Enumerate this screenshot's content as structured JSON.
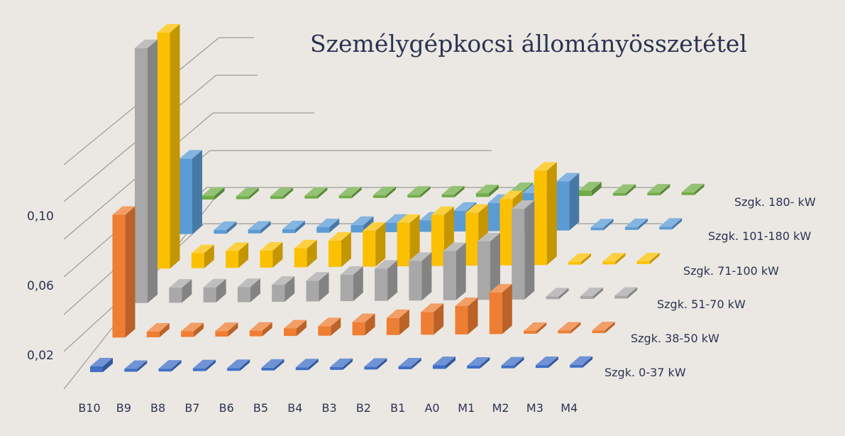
{
  "chart_data": {
    "type": "bar",
    "title": "Személygépkocsi állományösszetétel",
    "categories": [
      "B10",
      "B9",
      "B8",
      "B7",
      "B6",
      "B5",
      "B4",
      "B3",
      "B2",
      "B1",
      "A0",
      "M1",
      "M2",
      "M3",
      "M4"
    ],
    "yticks": [
      "0,02",
      "0,06",
      "0,10"
    ],
    "ylim": [
      0,
      0.14
    ],
    "grid": true,
    "legend": "none",
    "series": [
      {
        "name": "Szgk. 0-37 kW",
        "color": "#3f6fc7",
        "values": [
          0.003,
          0,
          0,
          0,
          0,
          0,
          0,
          0,
          0,
          0.001,
          0.002,
          0,
          0,
          0,
          0
        ]
      },
      {
        "name": "Szgk. 38-50 kW",
        "color": "#ee7e33",
        "values": [
          0.065,
          0.003,
          0.003,
          0.003,
          0.003,
          0.004,
          0.005,
          0.007,
          0.009,
          0.012,
          0.015,
          0.022,
          0,
          0,
          0
        ]
      },
      {
        "name": "Szgk. 51-70 kW",
        "color": "#a8a8a8",
        "values": [
          0.135,
          0.008,
          0.008,
          0.008,
          0.009,
          0.011,
          0.014,
          0.017,
          0.021,
          0.026,
          0.031,
          0.048,
          0,
          0,
          0
        ]
      },
      {
        "name": "Szgk. 71-100 kW",
        "color": "#fbc002",
        "values": [
          0.125,
          0.008,
          0.009,
          0.009,
          0.01,
          0.014,
          0.019,
          0.023,
          0.027,
          0.028,
          0.035,
          0.05,
          0,
          0,
          0
        ]
      },
      {
        "name": "Szgk. 101-180 kW",
        "color": "#5b9bd5",
        "values": [
          0.04,
          0.002,
          0.002,
          0.002,
          0.003,
          0.004,
          0.005,
          0.006,
          0.011,
          0.015,
          0.02,
          0.026,
          0,
          0,
          0
        ]
      },
      {
        "name": "Szgk. 180- kW",
        "color": "#70ad47",
        "values": [
          0.002,
          0,
          0,
          0,
          0,
          0,
          0,
          0,
          0.002,
          0.003,
          0.002,
          0.003,
          0,
          0,
          0
        ]
      }
    ]
  }
}
